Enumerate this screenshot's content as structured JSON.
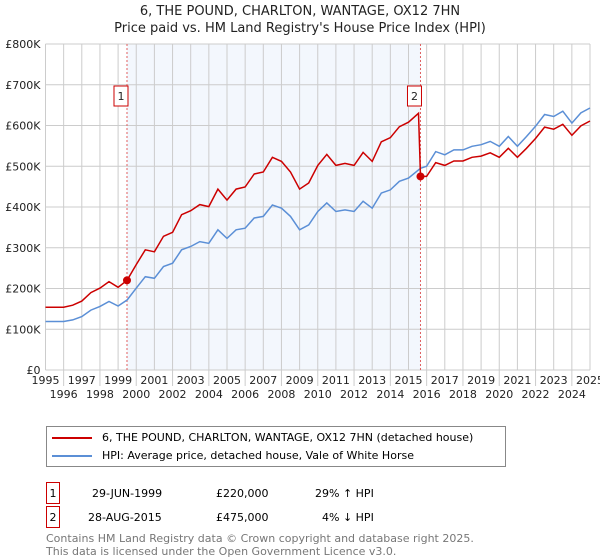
{
  "title": "6, THE POUND, CHARLTON, WANTAGE, OX12 7HN",
  "subtitle": "Price paid vs. HM Land Registry's House Price Index (HPI)",
  "chart_data": {
    "type": "line",
    "xlim": [
      1995,
      2025
    ],
    "ylim": [
      0,
      800000
    ],
    "x_ticks": [
      "1995",
      "1996",
      "1997",
      "1998",
      "1999",
      "2000",
      "2001",
      "2002",
      "2003",
      "2004",
      "2005",
      "2006",
      "2007",
      "2008",
      "2009",
      "2010",
      "2011",
      "2012",
      "2013",
      "2014",
      "2015",
      "2016",
      "2017",
      "2018",
      "2019",
      "2020",
      "2021",
      "2022",
      "2023",
      "2024",
      "2025"
    ],
    "y_ticks": [
      "£0",
      "£100K",
      "£200K",
      "£300K",
      "£400K",
      "£500K",
      "£600K",
      "£700K",
      "£800K"
    ],
    "grid": true,
    "shaded_range": [
      1999.49,
      2015.66
    ],
    "series": [
      {
        "name": "6, THE POUND, CHARLTON, WANTAGE, OX12 7HN (detached house)",
        "color": "#cc0000",
        "x": [
          1995,
          1996,
          1996.5,
          1997,
          1997.5,
          1998,
          1998.5,
          1999,
          1999.49,
          2000,
          2000.5,
          2001,
          2001.5,
          2002,
          2002.5,
          2003,
          2003.5,
          2004,
          2004.5,
          2005,
          2005.5,
          2006,
          2006.5,
          2007,
          2007.5,
          2008,
          2008.5,
          2009,
          2009.5,
          2010,
          2010.5,
          2011,
          2011.5,
          2012,
          2012.5,
          2013,
          2013.5,
          2014,
          2014.5,
          2015,
          2015.55,
          2015.66,
          2016,
          2016.5,
          2017,
          2017.5,
          2018,
          2018.5,
          2019,
          2019.5,
          2020,
          2020.5,
          2021,
          2021.5,
          2022,
          2022.5,
          2023,
          2023.5,
          2024,
          2024.5,
          2025
        ],
        "y": [
          154000,
          154000,
          159000,
          169000,
          190000,
          201000,
          217000,
          203000,
          220000,
          259000,
          295000,
          290000,
          328000,
          338000,
          381000,
          391000,
          406000,
          401000,
          444000,
          417000,
          444000,
          449000,
          481000,
          486000,
          522000,
          512000,
          486000,
          444000,
          459000,
          502000,
          529000,
          502000,
          507000,
          502000,
          534000,
          512000,
          560000,
          570000,
          597000,
          608000,
          630000,
          475000,
          475000,
          509000,
          502000,
          513000,
          513000,
          522000,
          525000,
          533000,
          522000,
          544000,
          522000,
          544000,
          568000,
          596000,
          591000,
          603000,
          576000,
          599000,
          611000
        ]
      },
      {
        "name": "HPI: Average price, detached house, Vale of White Horse",
        "color": "#5b8fd6",
        "x": [
          1995,
          1996,
          1996.5,
          1997,
          1997.5,
          1998,
          1998.5,
          1999,
          1999.5,
          2000,
          2000.5,
          2001,
          2001.5,
          2002,
          2002.5,
          2003,
          2003.5,
          2004,
          2004.5,
          2005,
          2005.5,
          2006,
          2006.5,
          2007,
          2007.5,
          2008,
          2008.5,
          2009,
          2009.5,
          2010,
          2010.5,
          2011,
          2011.5,
          2012,
          2012.5,
          2013,
          2013.5,
          2014,
          2014.5,
          2015,
          2015.66,
          2016,
          2016.5,
          2017,
          2017.5,
          2018,
          2018.5,
          2019,
          2019.5,
          2020,
          2020.5,
          2021,
          2021.5,
          2022,
          2022.5,
          2023,
          2023.5,
          2024,
          2024.5,
          2025
        ],
        "y": [
          119000,
          119000,
          123000,
          131000,
          147000,
          156000,
          168000,
          157000,
          172000,
          201000,
          229000,
          225000,
          254000,
          262000,
          295000,
          303000,
          315000,
          311000,
          344000,
          323000,
          344000,
          348000,
          373000,
          377000,
          405000,
          397000,
          377000,
          344000,
          356000,
          389000,
          410000,
          389000,
          393000,
          389000,
          414000,
          397000,
          434000,
          442000,
          463000,
          471000,
          495000,
          500000,
          536000,
          528000,
          540000,
          540000,
          549000,
          553000,
          561000,
          549000,
          573000,
          549000,
          573000,
          598000,
          627000,
          622000,
          635000,
          606000,
          631000,
          643000
        ]
      }
    ],
    "annotations": [
      {
        "label": "1",
        "x": 1999.49,
        "y": 220000
      },
      {
        "label": "2",
        "x": 2015.66,
        "y": 475000
      }
    ]
  },
  "legend": [
    "6, THE POUND, CHARLTON, WANTAGE, OX12 7HN (detached house)",
    "HPI: Average price, detached house, Vale of White Horse"
  ],
  "sales": [
    {
      "num": "1",
      "date": "29-JUN-1999",
      "price": "£220,000",
      "hpi": "29% ↑ HPI"
    },
    {
      "num": "2",
      "date": "28-AUG-2015",
      "price": "£475,000",
      "hpi": "4% ↓ HPI"
    }
  ],
  "footer": [
    "Contains HM Land Registry data © Crown copyright and database right 2025.",
    "This data is licensed under the Open Government Licence v3.0."
  ]
}
